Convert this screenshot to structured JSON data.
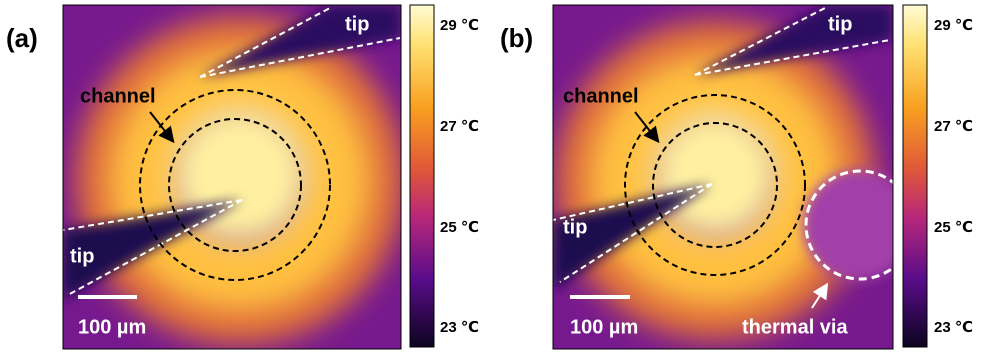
{
  "panels": [
    {
      "label": "(a)",
      "tips": [
        "tip",
        "tip"
      ],
      "channel": "channel",
      "scale_bar": "100 µm",
      "colorbar": [
        "29 ℃",
        "27 ℃",
        "25 ℃",
        "23 ℃"
      ]
    },
    {
      "label": "(b)",
      "tips": [
        "tip",
        "tip"
      ],
      "channel": "channel",
      "scale_bar": "100 µm",
      "annotation": "thermal via",
      "colorbar": [
        "29 ℃",
        "27 ℃",
        "25 ℃",
        "23 ℃"
      ]
    }
  ]
}
